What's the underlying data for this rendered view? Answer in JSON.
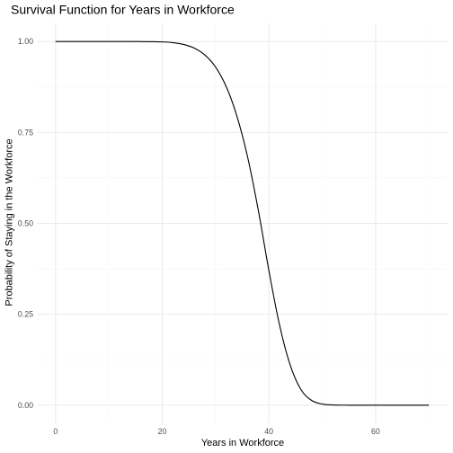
{
  "chart_data": {
    "type": "line",
    "title": "Survival Function for Years in Workforce",
    "xlabel": "Years in Workforce",
    "ylabel": "Probability of Staying in the Workforce",
    "xlim": [
      0,
      70
    ],
    "ylim": [
      0,
      1
    ],
    "x_ticks": [
      0,
      20,
      40,
      60
    ],
    "y_ticks": [
      0.0,
      0.25,
      0.5,
      0.75,
      1.0
    ],
    "x_tick_labels": [
      "0",
      "20",
      "40",
      "60"
    ],
    "y_tick_labels": [
      "0.00",
      "0.25",
      "0.50",
      "0.75",
      "1.00"
    ],
    "grid": true,
    "series": [
      {
        "color": "#000000",
        "x": [
          0,
          5,
          10,
          15,
          20,
          22,
          24,
          26,
          28,
          30,
          32,
          34,
          36,
          38,
          40,
          42,
          44,
          46,
          48,
          50,
          52,
          55,
          60,
          65,
          70
        ],
        "y": [
          1.0,
          1.0,
          1.0,
          1.0,
          0.999,
          0.997,
          0.992,
          0.982,
          0.963,
          0.93,
          0.876,
          0.795,
          0.683,
          0.537,
          0.37,
          0.22,
          0.11,
          0.043,
          0.013,
          0.003,
          0.0005,
          0.0,
          0.0,
          0.0,
          0.0
        ]
      }
    ]
  }
}
